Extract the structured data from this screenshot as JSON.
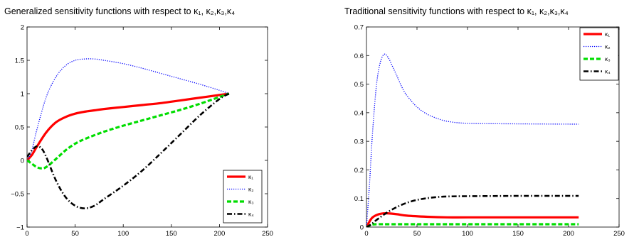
{
  "chart_data": [
    {
      "type": "line",
      "title": "Generalized sensitivity functions with respect to  κ₁, κ₂,κ₃,κ₄",
      "xlabel": "",
      "ylabel": "",
      "xlim": [
        0,
        250
      ],
      "ylim": [
        -1,
        2
      ],
      "xticks": [
        0,
        50,
        100,
        150,
        200,
        250
      ],
      "yticks": [
        -1,
        -0.5,
        0,
        0.5,
        1,
        1.5,
        2
      ],
      "xtick_labels": [
        "0",
        "50",
        "100",
        "150",
        "200",
        "250"
      ],
      "ytick_labels": [
        "−1",
        "−0.5",
        "0",
        "0.5",
        "1",
        "1.5",
        "2"
      ],
      "grid": false,
      "legend_position": "bottom-right",
      "series": [
        {
          "name": "κ₁",
          "color": "#ff0000",
          "style": "solid",
          "x": [
            0,
            5,
            10,
            20,
            30,
            40,
            50,
            60,
            70,
            80,
            100,
            120,
            140,
            160,
            180,
            200,
            210
          ],
          "y": [
            0,
            0.08,
            0.2,
            0.42,
            0.57,
            0.65,
            0.7,
            0.73,
            0.75,
            0.77,
            0.8,
            0.83,
            0.86,
            0.9,
            0.94,
            0.98,
            1.0
          ]
        },
        {
          "name": "κ₂",
          "color": "#0000ff",
          "style": "dotted",
          "x": [
            0,
            5,
            10,
            20,
            30,
            40,
            50,
            60,
            70,
            80,
            100,
            120,
            140,
            160,
            180,
            200,
            210
          ],
          "y": [
            0,
            0.15,
            0.45,
            0.95,
            1.25,
            1.42,
            1.5,
            1.52,
            1.52,
            1.5,
            1.45,
            1.38,
            1.3,
            1.22,
            1.14,
            1.05,
            1.0
          ]
        },
        {
          "name": "κ₃",
          "color": "#00dd00",
          "style": "dashed",
          "x": [
            0,
            5,
            10,
            15,
            20,
            30,
            40,
            50,
            60,
            80,
            100,
            120,
            140,
            160,
            180,
            200,
            210
          ],
          "y": [
            0,
            -0.05,
            -0.1,
            -0.12,
            -0.1,
            0.02,
            0.15,
            0.25,
            0.32,
            0.43,
            0.52,
            0.6,
            0.68,
            0.76,
            0.85,
            0.95,
            1.0
          ]
        },
        {
          "name": "κ₄",
          "color": "#000000",
          "style": "dashdot",
          "x": [
            0,
            5,
            10,
            15,
            20,
            30,
            40,
            50,
            60,
            70,
            80,
            100,
            120,
            140,
            160,
            180,
            200,
            210
          ],
          "y": [
            0.05,
            0.15,
            0.21,
            0.18,
            0.05,
            -0.3,
            -0.55,
            -0.68,
            -0.72,
            -0.68,
            -0.58,
            -0.38,
            -0.15,
            0.12,
            0.4,
            0.68,
            0.92,
            1.0
          ]
        }
      ]
    },
    {
      "type": "line",
      "title": "Traditional sensitivity functions with respect to  κ₁, κ₂,κ₃,κ₄",
      "xlabel": "",
      "ylabel": "",
      "xlim": [
        0,
        250
      ],
      "ylim": [
        0,
        0.7
      ],
      "xticks": [
        0,
        50,
        100,
        150,
        200,
        250
      ],
      "yticks": [
        0,
        0.1,
        0.2,
        0.3,
        0.4,
        0.5,
        0.6,
        0.7
      ],
      "xtick_labels": [
        "0",
        "50",
        "100",
        "150",
        "200",
        "250"
      ],
      "ytick_labels": [
        "0",
        "0.1",
        "0.2",
        "0.3",
        "0.4",
        "0.5",
        "0.6",
        "0.7"
      ],
      "grid": false,
      "legend_position": "top-right",
      "series": [
        {
          "name": "κ₁",
          "color": "#ff0000",
          "style": "solid",
          "x": [
            0,
            5,
            10,
            15,
            20,
            30,
            40,
            60,
            80,
            100,
            150,
            210
          ],
          "y": [
            0,
            0.03,
            0.042,
            0.047,
            0.048,
            0.045,
            0.04,
            0.036,
            0.034,
            0.034,
            0.034,
            0.034
          ]
        },
        {
          "name": "κ₂",
          "color": "#0000ff",
          "style": "dotted",
          "x": [
            0,
            3,
            6,
            10,
            14,
            18,
            22,
            26,
            30,
            35,
            40,
            50,
            60,
            70,
            80,
            100,
            150,
            210
          ],
          "y": [
            0,
            0.15,
            0.33,
            0.5,
            0.58,
            0.605,
            0.59,
            0.56,
            0.53,
            0.49,
            0.46,
            0.42,
            0.395,
            0.38,
            0.37,
            0.363,
            0.361,
            0.36
          ]
        },
        {
          "name": "κ₃",
          "color": "#00dd00",
          "style": "dashed",
          "x": [
            0,
            5,
            10,
            20,
            40,
            80,
            150,
            210
          ],
          "y": [
            0,
            0.008,
            0.01,
            0.01,
            0.01,
            0.01,
            0.01,
            0.01
          ]
        },
        {
          "name": "κ₄",
          "color": "#000000",
          "style": "dashdot",
          "x": [
            0,
            5,
            10,
            20,
            30,
            40,
            50,
            60,
            70,
            80,
            100,
            150,
            210
          ],
          "y": [
            0,
            0.01,
            0.025,
            0.05,
            0.07,
            0.085,
            0.095,
            0.101,
            0.105,
            0.107,
            0.108,
            0.109,
            0.109
          ]
        }
      ]
    }
  ]
}
